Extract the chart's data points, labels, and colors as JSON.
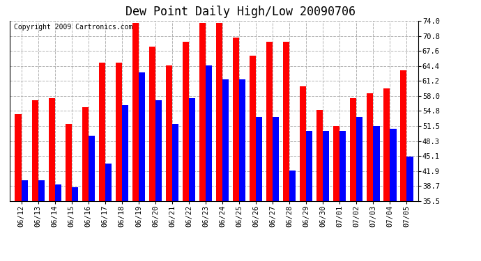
{
  "title": "Dew Point Daily High/Low 20090706",
  "copyright": "Copyright 2009 Cartronics.com",
  "categories": [
    "06/12",
    "06/13",
    "06/14",
    "06/15",
    "06/16",
    "06/17",
    "06/18",
    "06/19",
    "06/20",
    "06/21",
    "06/22",
    "06/23",
    "06/24",
    "06/25",
    "06/26",
    "06/27",
    "06/28",
    "06/29",
    "06/30",
    "07/01",
    "07/02",
    "07/03",
    "07/04",
    "07/05"
  ],
  "highs": [
    54.0,
    57.0,
    57.5,
    52.0,
    55.5,
    65.0,
    65.0,
    73.5,
    68.5,
    64.5,
    69.5,
    73.5,
    73.5,
    70.5,
    66.5,
    69.5,
    69.5,
    60.0,
    55.0,
    51.5,
    57.5,
    58.5,
    59.5,
    63.5
  ],
  "lows": [
    40.0,
    40.0,
    39.0,
    38.5,
    49.5,
    43.5,
    56.0,
    63.0,
    57.0,
    52.0,
    57.5,
    64.5,
    61.5,
    61.5,
    53.5,
    53.5,
    42.0,
    50.5,
    50.5,
    50.5,
    53.5,
    51.5,
    51.0,
    45.0
  ],
  "high_color": "#ff0000",
  "low_color": "#0000ff",
  "bg_color": "#ffffff",
  "grid_color": "#aaaaaa",
  "yticks": [
    35.5,
    38.7,
    41.9,
    45.1,
    48.3,
    51.5,
    54.8,
    58.0,
    61.2,
    64.4,
    67.6,
    70.8,
    74.0
  ],
  "ymin": 35.5,
  "ymax": 74.0,
  "bar_width": 0.38,
  "title_fontsize": 12,
  "tick_fontsize": 7.5,
  "copyright_fontsize": 7.0
}
